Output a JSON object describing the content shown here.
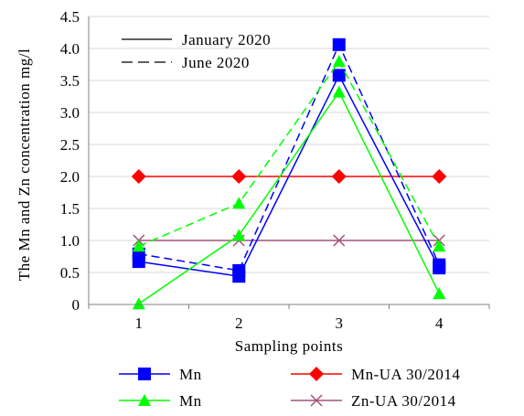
{
  "chart_data": {
    "type": "line",
    "title": "",
    "xlabel": "Sampling points",
    "ylabel": "The Mn and Zn concentration mg/l",
    "categories": [
      "1",
      "2",
      "3",
      "4"
    ],
    "ylim": [
      0,
      4.5
    ],
    "yticks": [
      "0",
      "0.5",
      "1.0",
      "1.5",
      "2.0",
      "2.5",
      "3.0",
      "3.5",
      "4.0",
      "4.5"
    ],
    "grid": "horizontal",
    "line_style_legend": {
      "placement": "top-left inside plot",
      "entries": [
        {
          "label": "January 2020",
          "dash": "solid"
        },
        {
          "label": "June 2020",
          "dash": "dashed"
        }
      ]
    },
    "series_legend": {
      "placement": "bottom",
      "entries": [
        {
          "label": "Mn",
          "color": "#0000ff",
          "marker": "square"
        },
        {
          "label": "Mn-UA 30/2014",
          "color": "#ff0000",
          "marker": "diamond"
        },
        {
          "label": "Mn",
          "color": "#00ff00",
          "marker": "triangle"
        },
        {
          "label": "Zn-UA 30/2014",
          "color": "#a0527a",
          "marker": "cross"
        }
      ]
    },
    "series": [
      {
        "name": "Mn",
        "period": "January 2020",
        "color": "#0000ff",
        "marker": "square",
        "dash": "solid",
        "values": [
          0.67,
          0.44,
          3.58,
          0.57
        ]
      },
      {
        "name": "Mn",
        "period": "June 2020",
        "color": "#0000ff",
        "marker": "square",
        "dash": "dashed",
        "values": [
          0.79,
          0.53,
          4.06,
          0.62
        ]
      },
      {
        "name": "Mn",
        "period": "January 2020",
        "color": "#00ff00",
        "marker": "triangle",
        "dash": "solid",
        "values": [
          0.01,
          1.08,
          3.32,
          0.17
        ]
      },
      {
        "name": "Mn",
        "period": "June 2020",
        "color": "#00ff00",
        "marker": "triangle",
        "dash": "dashed",
        "values": [
          0.91,
          1.58,
          3.8,
          0.91
        ]
      },
      {
        "name": "Mn-UA 30/2014",
        "color": "#ff0000",
        "marker": "diamond",
        "dash": "solid",
        "values": [
          2.0,
          2.0,
          2.0,
          2.0
        ]
      },
      {
        "name": "Zn-UA 30/2014",
        "color": "#a0527a",
        "marker": "cross",
        "dash": "solid",
        "values": [
          1.0,
          1.0,
          1.0,
          1.0
        ]
      }
    ]
  }
}
